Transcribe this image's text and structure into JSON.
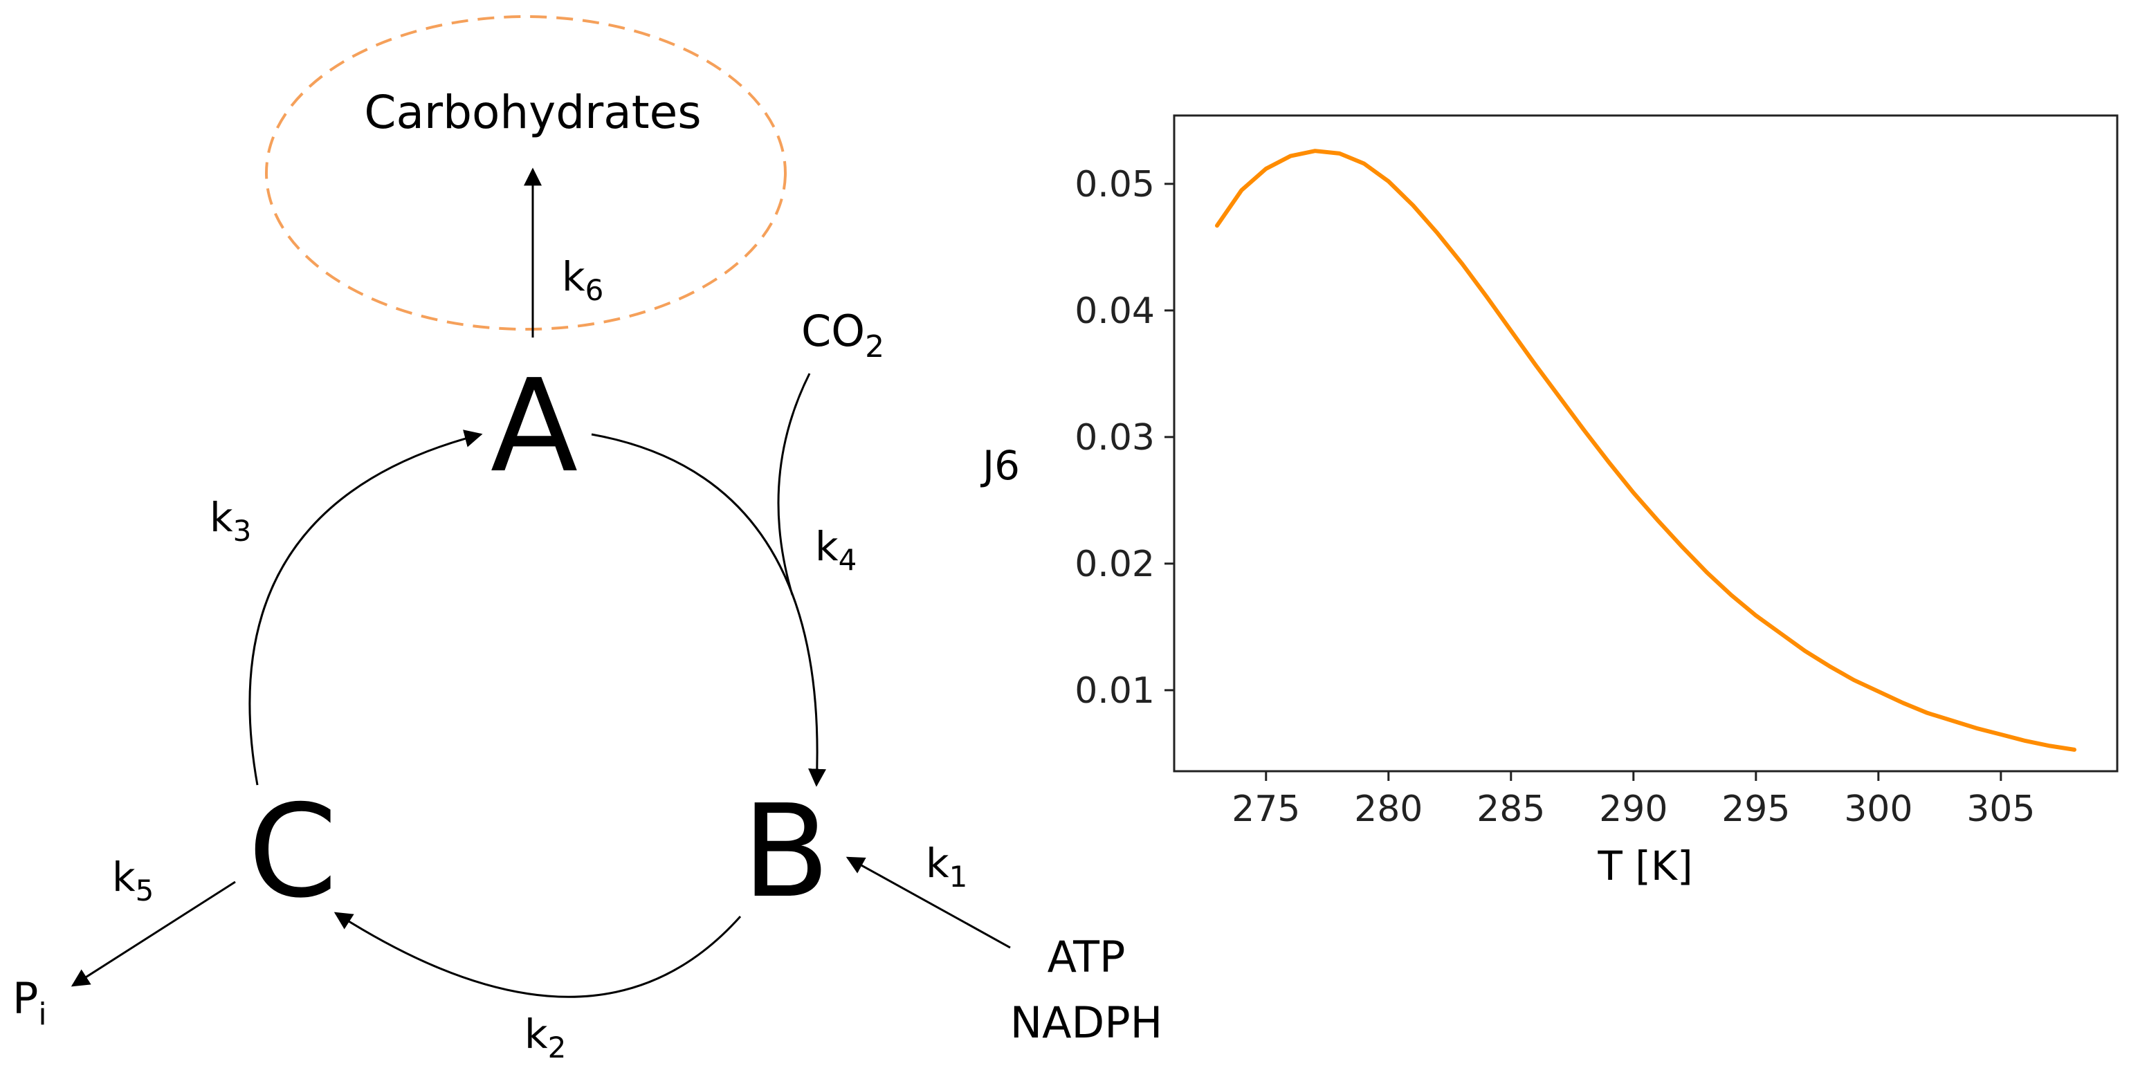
{
  "diagram": {
    "nodes": [
      {
        "id": "A",
        "label": "A"
      },
      {
        "id": "B",
        "label": "B"
      },
      {
        "id": "C",
        "label": "C"
      }
    ],
    "product": "Carbohydrates",
    "inputs": {
      "co2": {
        "main": "CO",
        "sub": "2"
      },
      "atp": "ATP",
      "nadph": "NADPH"
    },
    "output_pi": {
      "main": "P",
      "sub": "i"
    },
    "rates": [
      {
        "id": "k1",
        "main": "k",
        "sub": "1"
      },
      {
        "id": "k2",
        "main": "k",
        "sub": "2"
      },
      {
        "id": "k3",
        "main": "k",
        "sub": "3"
      },
      {
        "id": "k4",
        "main": "k",
        "sub": "4"
      },
      {
        "id": "k5",
        "main": "k",
        "sub": "5"
      },
      {
        "id": "k6",
        "main": "k",
        "sub": "6"
      }
    ],
    "colors": {
      "product_ellipse": "#f5a05a",
      "arrows": "#000000"
    }
  },
  "chart_data": {
    "type": "line",
    "title": "",
    "xlabel": "T [K]",
    "ylabel": "J6",
    "xlim": [
      271.25,
      309.75
    ],
    "ylim": [
      0.0036,
      0.0554
    ],
    "xticks": [
      275,
      280,
      285,
      290,
      295,
      300,
      305
    ],
    "yticks": [
      0.01,
      0.02,
      0.03,
      0.04,
      0.05
    ],
    "xtick_labels": [
      "275",
      "280",
      "285",
      "290",
      "295",
      "300",
      "305"
    ],
    "ytick_labels": [
      "0.01",
      "0.02",
      "0.03",
      "0.04",
      "0.05"
    ],
    "grid": false,
    "legend": "none",
    "series": [
      {
        "color": "#ff8c00",
        "x": [
          273,
          274,
          275,
          276,
          277,
          278,
          279,
          280,
          281,
          282,
          283,
          284,
          285,
          286,
          287,
          288,
          289,
          290,
          291,
          292,
          293,
          294,
          295,
          296,
          297,
          298,
          299,
          300,
          301,
          302,
          303,
          304,
          305,
          306,
          307,
          308
        ],
        "y": [
          0.0467,
          0.0495,
          0.0512,
          0.0522,
          0.0526,
          0.0524,
          0.0516,
          0.0502,
          0.0483,
          0.0461,
          0.0437,
          0.0411,
          0.0384,
          0.0357,
          0.0331,
          0.0305,
          0.028,
          0.0256,
          0.0234,
          0.0213,
          0.0193,
          0.0175,
          0.0159,
          0.0145,
          0.0131,
          0.0119,
          0.0108,
          0.0099,
          0.009,
          0.0082,
          0.0076,
          0.007,
          0.0065,
          0.006,
          0.0056,
          0.0053
        ]
      }
    ]
  }
}
